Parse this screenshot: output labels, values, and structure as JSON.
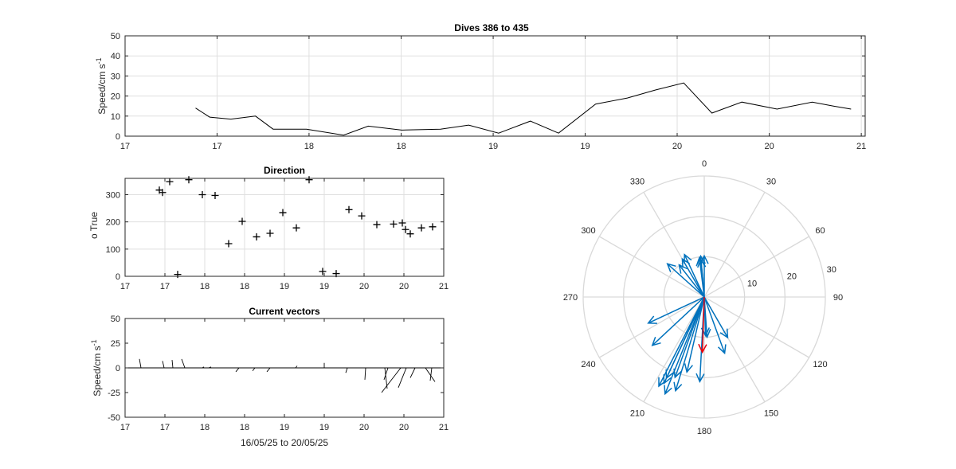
{
  "colors": {
    "axis": "#262626",
    "grid": "#dfdfdf",
    "line": "#000000",
    "vector_blue": "#0072bd",
    "vector_red": "#e8000b",
    "polar_grid": "#d9d9d9"
  },
  "chart_data": [
    {
      "id": "speed",
      "type": "line",
      "title": "Dives 386 to 435",
      "ylabel": "Speed/cm s",
      "ylabel_sup": "-1",
      "xlim": [
        16.7,
        20.9
      ],
      "ylim": [
        0,
        50
      ],
      "xticks": [
        16.7,
        17.222,
        17.744,
        18.267,
        18.789,
        19.311,
        19.833,
        20.356,
        20.878
      ],
      "xticklabels": [
        "17",
        "17",
        "18",
        "18",
        "19",
        "19",
        "20",
        "20",
        "21"
      ],
      "yticks": [
        0,
        10,
        20,
        30,
        40,
        50
      ],
      "grid": true,
      "x": [
        17.1,
        17.18,
        17.3,
        17.44,
        17.54,
        17.73,
        17.94,
        18.08,
        18.27,
        18.49,
        18.65,
        18.82,
        19.0,
        19.16,
        19.37,
        19.55,
        19.71,
        19.87,
        20.03,
        20.2,
        20.4,
        20.6,
        20.72,
        20.82
      ],
      "y": [
        14,
        9.5,
        8.5,
        10,
        3.5,
        3.5,
        0.5,
        5,
        3,
        3.5,
        5.5,
        1.5,
        7.5,
        1.5,
        16,
        19,
        23,
        26.5,
        11.5,
        17,
        13.5,
        17,
        15,
        13.5
      ]
    },
    {
      "id": "direction",
      "type": "scatter",
      "title": "Direction",
      "ylabel": "o True",
      "xlim": [
        17.0,
        21.0
      ],
      "ylim": [
        0,
        360
      ],
      "xticks": [
        17,
        17.5,
        18,
        18.5,
        19,
        19.5,
        20,
        20.5,
        21
      ],
      "xticklabels": [
        "17",
        "17",
        "18",
        "18",
        "19",
        "19",
        "20",
        "20",
        "21"
      ],
      "yticks": [
        0,
        100,
        200,
        300
      ],
      "grid": true,
      "x": [
        17.43,
        17.47,
        17.56,
        17.66,
        17.8,
        17.97,
        18.13,
        18.3,
        18.47,
        18.65,
        18.82,
        18.98,
        19.15,
        19.31,
        19.48,
        19.65,
        19.81,
        19.97,
        20.16,
        20.37,
        20.48,
        20.52,
        20.58,
        20.72,
        20.86
      ],
      "y": [
        317,
        308,
        348,
        7,
        355,
        300,
        297,
        120,
        202,
        145,
        158,
        234,
        178,
        355,
        18,
        10,
        245,
        222,
        190,
        192,
        196,
        172,
        156,
        178,
        182
      ]
    },
    {
      "id": "vectors",
      "type": "line",
      "title": "Current vectors",
      "ylabel": "Speed/cm s",
      "ylabel_sup": "-1",
      "xlabel": "16/05/25 to 20/05/25",
      "xlim": [
        17.0,
        21.0
      ],
      "ylim": [
        -50,
        50
      ],
      "xticks": [
        17,
        17.5,
        18,
        18.5,
        19,
        19.5,
        20,
        20.5,
        21
      ],
      "xticklabels": [
        "17",
        "17",
        "18",
        "18",
        "19",
        "19",
        "20",
        "20",
        "21"
      ],
      "yticks": [
        -50,
        -25,
        0,
        25,
        50
      ],
      "grid": false,
      "x0": [
        17.2,
        17.49,
        17.6,
        17.75,
        17.97,
        18.05,
        18.11,
        18.43,
        18.63,
        18.82,
        19.14,
        19.5,
        19.79,
        20.02,
        20.26,
        20.3,
        20.46,
        20.53,
        20.64,
        20.77,
        20.85
      ],
      "dx": [
        -0.02,
        -0.02,
        -0.01,
        -0.04,
        0.02,
        0.03,
        0.01,
        -0.04,
        -0.03,
        -0.04,
        0.02,
        0.0,
        -0.02,
        -0.01,
        0.03,
        -0.05,
        -0.24,
        -0.1,
        -0.06,
        0.12,
        -0.02
      ],
      "dy": [
        9,
        7,
        8,
        9,
        1,
        1,
        0,
        -4,
        -3,
        -4,
        2,
        5,
        -5,
        -12,
        -21,
        -12,
        -25,
        -20,
        -10,
        -14,
        -13
      ]
    },
    {
      "id": "polar",
      "type": "scatter",
      "rlim": [
        0,
        30
      ],
      "rticks": [
        10,
        20,
        30
      ],
      "rticklabels": [
        "10",
        "20",
        "30"
      ],
      "theta_labels": [
        "0",
        "30",
        "60",
        "90",
        "120",
        "150",
        "180",
        "210",
        "240",
        "270",
        "300",
        "330"
      ],
      "arrows": [
        {
          "dir": 355,
          "speed": 10.2
        },
        {
          "dir": 0,
          "speed": 10.2
        },
        {
          "dir": 353,
          "speed": 9.8
        },
        {
          "dir": 355,
          "speed": 9.4
        },
        {
          "dir": 335,
          "speed": 11.6
        },
        {
          "dir": 330,
          "speed": 10.9
        },
        {
          "dir": 322,
          "speed": 10.1
        },
        {
          "dir": 312,
          "speed": 12.3
        },
        {
          "dir": 245,
          "speed": 15.3
        },
        {
          "dir": 227,
          "speed": 17.6
        },
        {
          "dir": 160,
          "speed": 14.8
        },
        {
          "dir": 150,
          "speed": 11.6
        },
        {
          "dir": 178,
          "speed": 9.6
        },
        {
          "dir": 197,
          "speed": 24.3
        },
        {
          "dir": 200,
          "speed": 21.2
        },
        {
          "dir": 202,
          "speed": 25.9
        },
        {
          "dir": 205,
          "speed": 22.2
        },
        {
          "dir": 207,
          "speed": 24.8
        },
        {
          "dir": 205,
          "speed": 23.6
        },
        {
          "dir": 193,
          "speed": 19.1
        },
        {
          "dir": 183,
          "speed": 21.0
        },
        {
          "dir": 176,
          "speed": 10.0
        }
      ],
      "mean_arrow": {
        "dir": 182,
        "speed": 13.7
      }
    }
  ]
}
